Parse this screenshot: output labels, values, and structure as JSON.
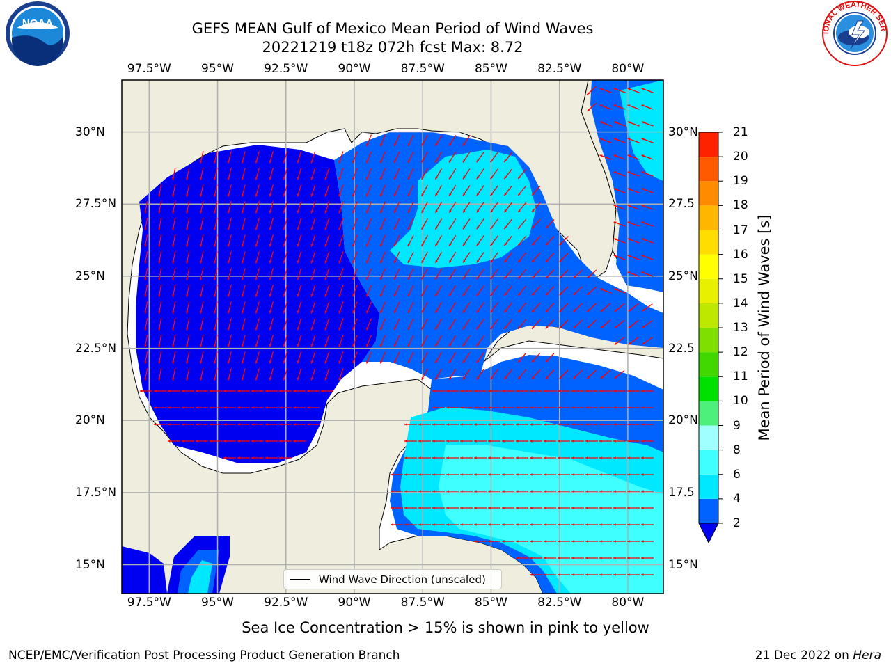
{
  "header": {
    "title": "GEFS MEAN Gulf of Mexico Mean Period of Wind Waves",
    "subtitle": "20221219 t18z 072h fcst   Max: 8.72"
  },
  "logos": {
    "left": {
      "icon": "noaa-logo-icon",
      "text": "NOAA"
    },
    "right": {
      "icon": "nws-logo-icon",
      "text": "NATIONAL WEATHER SERVICE"
    }
  },
  "map": {
    "lon_range": [
      -98.5,
      -78.7
    ],
    "lat_range": [
      14.0,
      31.8
    ],
    "lon_ticks": [
      "97.5°W",
      "95°W",
      "92.5°W",
      "90°W",
      "87.5°W",
      "85°W",
      "82.5°W",
      "80°W"
    ],
    "lon_values": [
      -97.5,
      -95.0,
      -92.5,
      -90.0,
      -87.5,
      -85.0,
      -82.5,
      -80.0
    ],
    "lat_ticks": [
      "30°N",
      "27.5°N",
      "25°N",
      "22.5°N",
      "20°N",
      "17.5°N",
      "15°N"
    ],
    "lat_values": [
      30.0,
      27.5,
      25.0,
      22.5,
      20.0,
      17.5,
      15.0
    ],
    "right_lat_ticks": [
      "30°N",
      "27.5",
      "25°N",
      "22.5",
      "20°N",
      "17.5",
      "15°N"
    ],
    "land_color": "#efedde",
    "grid_color": "#b0b0b0",
    "arrow_color": "#ff0000",
    "legend_label": "Wind Wave Direction (unscaled)"
  },
  "colorbar": {
    "label": "Mean Period of Wind Waves [s]",
    "levels": [
      2,
      4,
      6,
      8,
      9,
      10,
      11,
      12,
      13,
      14,
      15,
      16,
      17,
      18,
      19,
      20,
      21
    ],
    "colors": [
      "#0062ff",
      "#00e8ff",
      "#40ffff",
      "#a0ffff",
      "#4cf07a",
      "#00e000",
      "#40d800",
      "#7fe000",
      "#bfe800",
      "#e8f000",
      "#ffff00",
      "#ffdd00",
      "#ffb600",
      "#ff8c00",
      "#ff5a00",
      "#ff2200"
    ],
    "under_color": "#0000f0"
  },
  "notes": {
    "sea_ice": "Sea Ice Concentration > 15% is shown in pink to yellow",
    "producer": "NCEP/EMC/Verification Post Processing Product Generation Branch",
    "date": "21 Dec 2022 on ",
    "machine": "Hera"
  }
}
